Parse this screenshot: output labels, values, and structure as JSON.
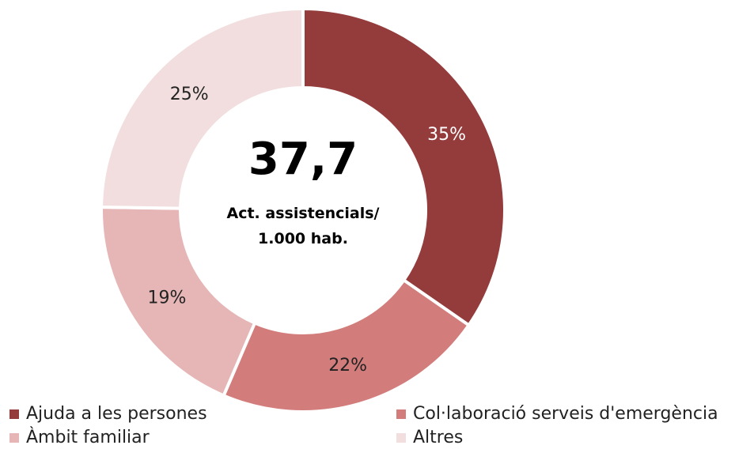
{
  "chart_data": {
    "type": "pie",
    "subtype": "donut",
    "center_value": "37,7",
    "center_caption_line1": "Act. assistencials/",
    "center_caption_line2": "1.000 hab.",
    "slices": [
      {
        "label": "Ajuda a les persones",
        "value": 35,
        "display": "35%",
        "color": "#943c3c",
        "label_color": "#ffffff"
      },
      {
        "label": "Col·laboració serveis d'emergència",
        "value": 22,
        "display": "22%",
        "color": "#d27d7b",
        "label_color": "#222222"
      },
      {
        "label": "Àmbit familiar",
        "value": 19,
        "display": "19%",
        "color": "#e6b6b6",
        "label_color": "#222222"
      },
      {
        "label": "Altres",
        "value": 25,
        "display": "25%",
        "color": "#f2dede",
        "label_color": "#222222"
      }
    ],
    "legend_placement": "bottom"
  }
}
